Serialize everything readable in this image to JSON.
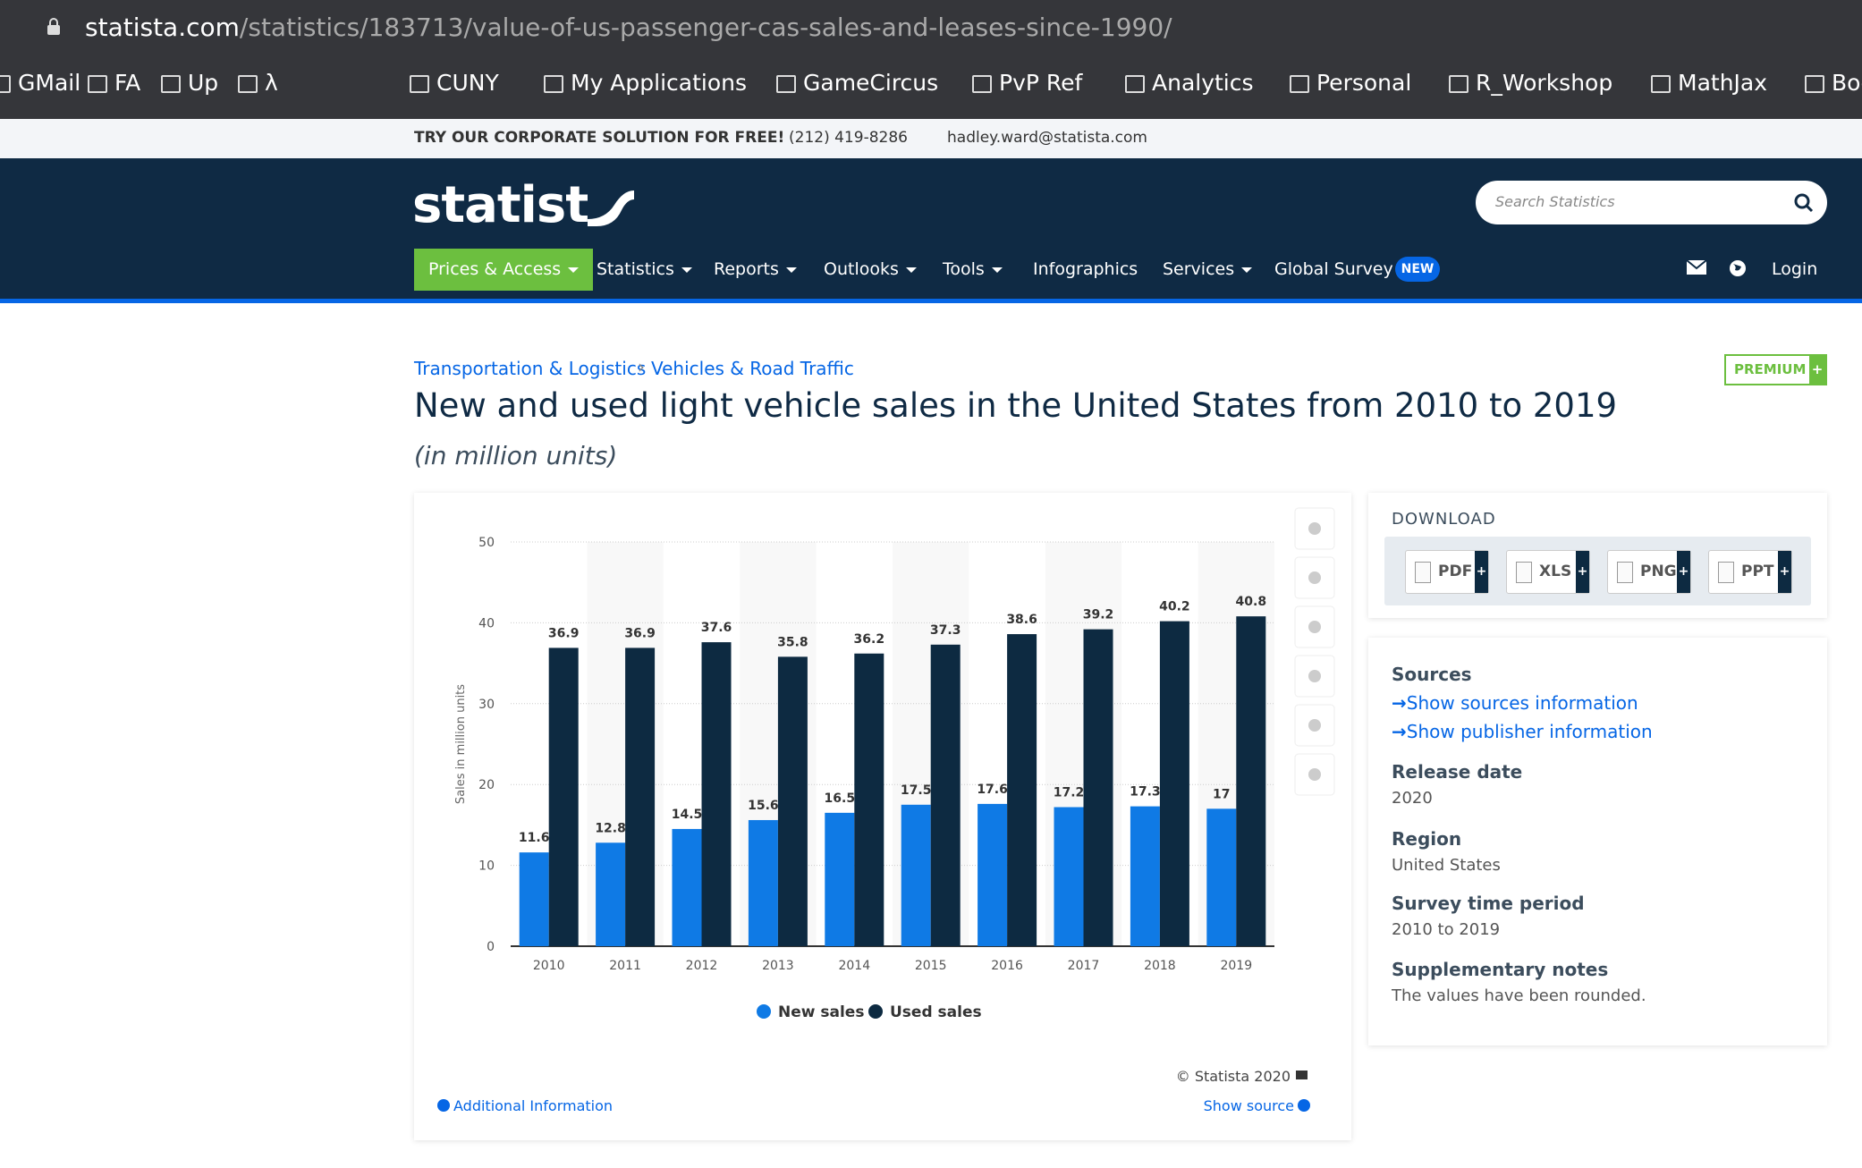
{
  "browser": {
    "url_host": "statista.com",
    "url_path": "/statistics/183713/value-of-us-passenger-cas-sales-and-leases-since-1990/",
    "bookmarks": [
      "GMail",
      "FA",
      "Up",
      "λ",
      "CUNY",
      "My Applications",
      "GameCircus",
      "PvP Ref",
      "Analytics",
      "Personal",
      "R_Workshop",
      "MathJax",
      "Boo"
    ]
  },
  "promo": {
    "text": "TRY OUR CORPORATE SOLUTION FOR FREE!",
    "phone": "(212) 419-8286",
    "email": "hadley.ward@statista.com"
  },
  "header": {
    "logo": "statista",
    "search_placeholder": "Search Statistics",
    "nav": [
      "Prices & Access",
      "Statistics",
      "Reports",
      "Outlooks",
      "Tools",
      "Infographics",
      "Services",
      "Global Survey"
    ],
    "new_badge": "NEW",
    "login": "Login"
  },
  "breadcrumbs": [
    "Transportation & Logistics",
    "Vehicles & Road Traffic"
  ],
  "premium": "PREMIUM",
  "chart_data": {
    "type": "bar",
    "title": "New and used light vehicle sales in the United States from 2010 to 2019",
    "subtitle": "(in million units)",
    "y_label": "Sales in million units",
    "categories": [
      "2010",
      "2011",
      "2012",
      "2013",
      "2014",
      "2015",
      "2016",
      "2017",
      "2018",
      "2019"
    ],
    "series": [
      {
        "name": "New sales",
        "color": "#0f7ae5",
        "values": [
          11.6,
          12.8,
          14.5,
          15.6,
          16.5,
          17.5,
          17.6,
          17.2,
          17.3,
          17
        ]
      },
      {
        "name": "Used sales",
        "color": "#0d2a41",
        "values": [
          36.9,
          36.9,
          37.6,
          35.8,
          36.2,
          37.3,
          38.6,
          39.2,
          40.2,
          40.8
        ]
      }
    ],
    "ylim": [
      0,
      50
    ],
    "yticks": [
      0,
      10,
      20,
      30,
      40,
      50
    ],
    "grid": true,
    "legend": "bottom",
    "copyright": "© Statista 2020",
    "additional_info": "Additional Information",
    "show_source": "Show source"
  },
  "download": {
    "title": "DOWNLOAD",
    "formats": [
      "PDF",
      "XLS",
      "PNG",
      "PPT"
    ]
  },
  "info": {
    "sources": "Sources",
    "links": [
      "Show sources information",
      "Show publisher information"
    ],
    "items": [
      {
        "label": "Release date",
        "value": "2020"
      },
      {
        "label": "Region",
        "value": "United States"
      },
      {
        "label": "Survey time period",
        "value": "2010 to 2019"
      },
      {
        "label": "Supplementary notes",
        "value": "The values have been rounded."
      }
    ]
  }
}
